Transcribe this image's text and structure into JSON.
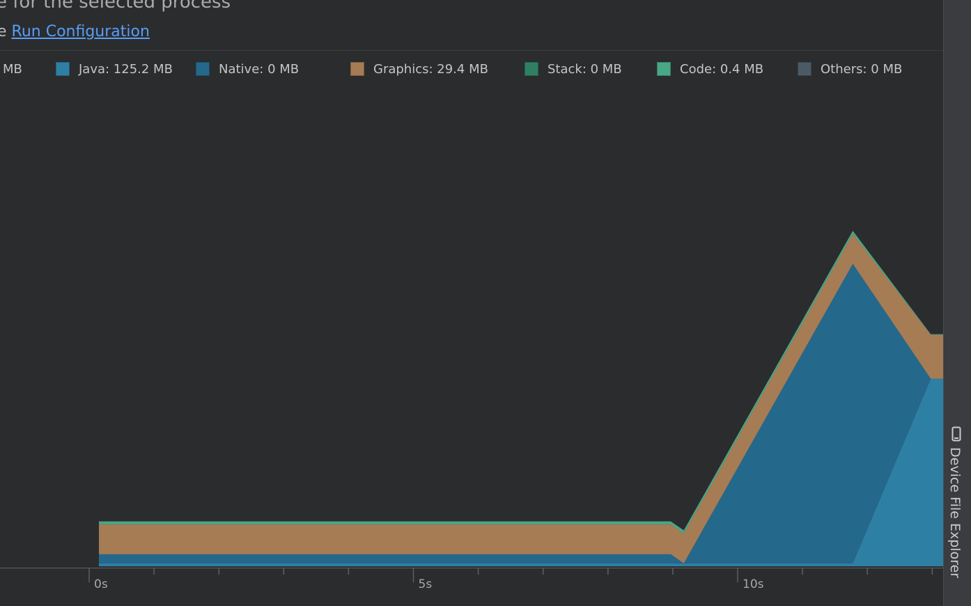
{
  "header": {
    "title_fragment": "e for the selected process",
    "run_prefix": "e ",
    "run_link": "Run Configuration"
  },
  "legend": [
    {
      "label": "MB",
      "color": ""
    },
    {
      "label": "Java: 125.2 MB",
      "color": "#2e7fa4"
    },
    {
      "label": "Native: 0 MB",
      "color": "#24688c"
    },
    {
      "label": "Graphics: 29.4 MB",
      "color": "#a67c55"
    },
    {
      "label": "Stack: 0 MB",
      "color": "#2f8062"
    },
    {
      "label": "Code: 0.4 MB",
      "color": "#4aa786"
    },
    {
      "label": "Others: 0 MB",
      "color": "#4c5a66"
    }
  ],
  "colors": {
    "background": "#2b2c2e",
    "java": "#2e7fa4",
    "native": "#24688c",
    "graphics": "#a67c55",
    "stack": "#2f8062",
    "code": "#4aa786",
    "others": "#4c5a66",
    "axis": "#5d5f62",
    "link": "#589df6"
  },
  "chart_data": {
    "type": "area",
    "xlabel": "",
    "ylabel": "",
    "x_ticks": [
      "0s",
      "5s",
      "10s"
    ],
    "xlim": [
      -0.1,
      13.2
    ],
    "ylim": [
      0,
      280
    ],
    "x": [
      0,
      8.8,
      9.0,
      11.6,
      12.8,
      13.05,
      13.2
    ],
    "series": [
      {
        "name": "Java",
        "values": [
          2,
          2,
          2,
          2,
          125.2,
          125.2,
          125.2
        ]
      },
      {
        "name": "Native",
        "values": [
          6,
          6,
          0,
          200,
          0,
          0,
          0
        ]
      },
      {
        "name": "Graphics",
        "values": [
          20,
          20,
          20,
          20,
          29.4,
          29.4,
          29.4
        ]
      },
      {
        "name": "Stack",
        "values": [
          0,
          0,
          0,
          0,
          0,
          0,
          0
        ]
      },
      {
        "name": "Code",
        "values": [
          2,
          2,
          2,
          2,
          0.4,
          0.4,
          0.4
        ]
      },
      {
        "name": "Others",
        "values": [
          0,
          0,
          0,
          0,
          0,
          0,
          0
        ]
      }
    ]
  },
  "sidebar": {
    "tab_label": "Device File Explorer",
    "tab_icon": "phone-icon"
  }
}
